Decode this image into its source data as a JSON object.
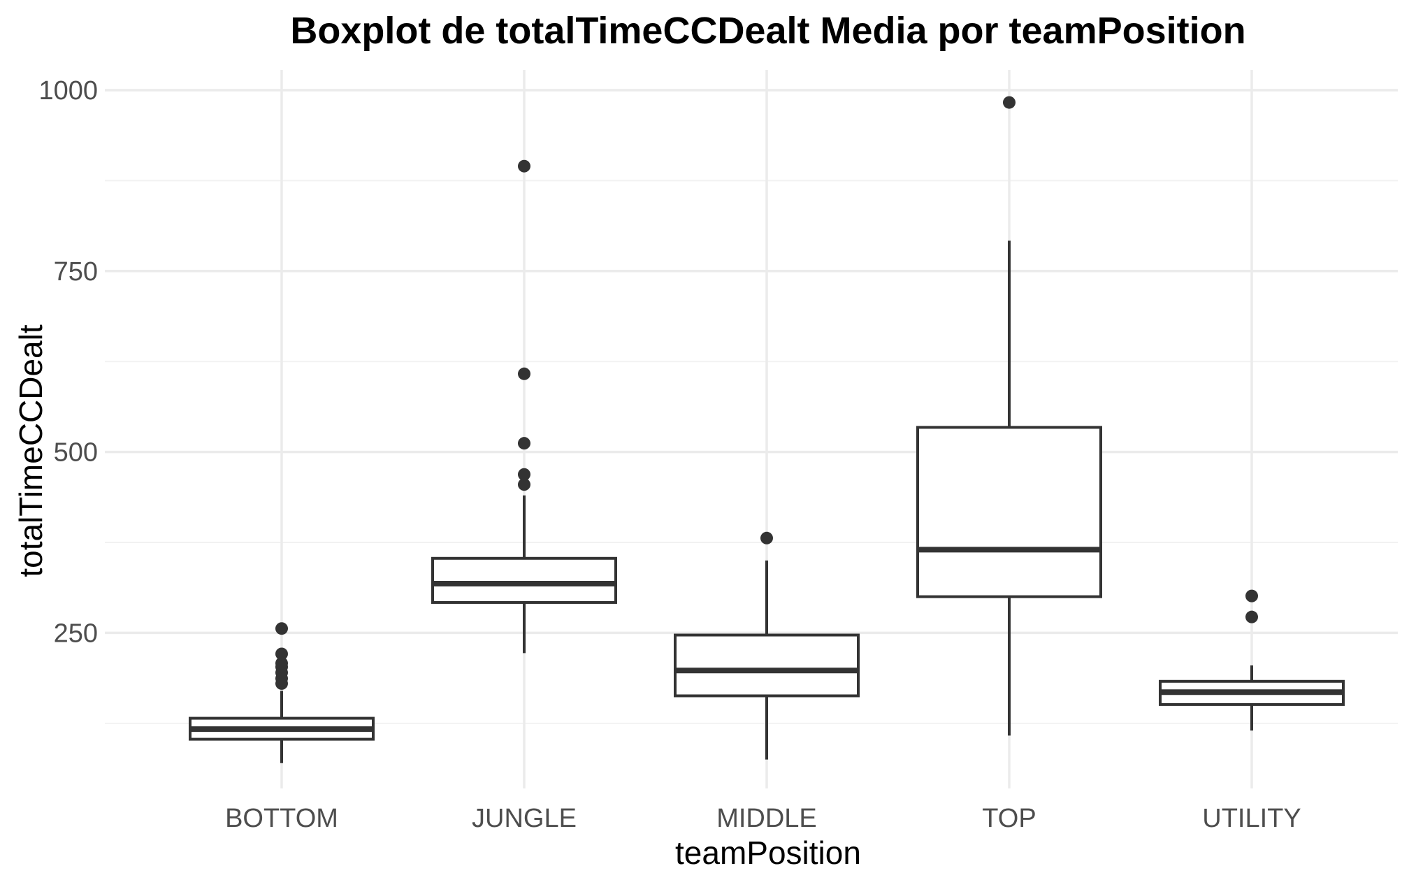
{
  "chart_data": {
    "type": "boxplot",
    "title": "Boxplot de totalTimeCCDealt Media por teamPosition",
    "xlabel": "teamPosition",
    "ylabel": "totalTimeCCDealt",
    "ylim": [
      35,
      1028
    ],
    "yticks": [
      250,
      500,
      750,
      1000
    ],
    "yticks_minor": [
      125,
      375,
      625,
      875
    ],
    "grid": true,
    "categories": [
      "BOTTOM",
      "JUNGLE",
      "MIDDLE",
      "TOP",
      "UTILITY"
    ],
    "boxes": [
      {
        "category": "BOTTOM",
        "whisker_low": 70,
        "q1": 103,
        "median": 117,
        "q3": 132,
        "whisker_high": 170,
        "outliers": [
          180,
          187,
          195,
          203,
          208,
          221,
          256
        ]
      },
      {
        "category": "JUNGLE",
        "whisker_low": 222,
        "q1": 292,
        "median": 318,
        "q3": 353,
        "whisker_high": 440,
        "outliers": [
          455,
          469,
          512,
          608,
          895
        ]
      },
      {
        "category": "MIDDLE",
        "whisker_low": 75,
        "q1": 163,
        "median": 198,
        "q3": 247,
        "whisker_high": 350,
        "outliers": [
          381
        ]
      },
      {
        "category": "TOP",
        "whisker_low": 108,
        "q1": 300,
        "median": 365,
        "q3": 534,
        "whisker_high": 792,
        "outliers": [
          983
        ]
      },
      {
        "category": "UTILITY",
        "whisker_low": 115,
        "q1": 151,
        "median": 168,
        "q3": 183,
        "whisker_high": 205,
        "outliers": [
          272,
          301
        ]
      }
    ],
    "colors": {
      "box_stroke": "#333333",
      "box_fill": "#ffffff",
      "outlier": "#333333",
      "text": "#000000",
      "tick_text": "#4d4d4d"
    }
  }
}
